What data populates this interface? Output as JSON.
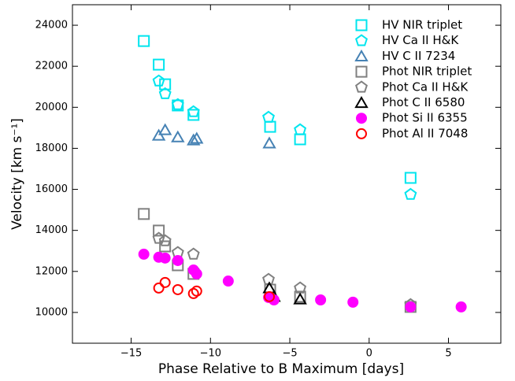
{
  "chart_data": {
    "type": "scatter",
    "x_label": "Phase Relative to B Maximum [days]",
    "y_label": "Velocity [km s⁻¹]",
    "xlim": [
      -18.7,
      8.3
    ],
    "ylim": [
      8500,
      25000
    ],
    "xticks": [
      {
        "value": -15,
        "label": "−15"
      },
      {
        "value": -10,
        "label": "−10"
      },
      {
        "value": -5,
        "label": "−5"
      },
      0,
      5
    ],
    "yticks": [
      10000,
      12000,
      14000,
      16000,
      18000,
      20000,
      22000,
      24000
    ],
    "legend": "upper right",
    "series": [
      {
        "name": "HV NIR triplet",
        "color": "#00e5ee",
        "marker": "square",
        "filled": false,
        "x": [
          -14.2,
          -13.26,
          -12.86,
          -12.06,
          -11.07,
          -6.24,
          -4.35,
          2.61
        ],
        "values": [
          23230,
          22080,
          21120,
          20090,
          19630,
          19050,
          18440,
          16560
        ]
      },
      {
        "name": "HV Ca II H&K",
        "color": "#00e5ee",
        "marker": "pentagon",
        "filled": false,
        "x": [
          -13.26,
          -12.86,
          -12.06,
          -11.07,
          -6.34,
          -4.35,
          2.61
        ],
        "values": [
          21280,
          20660,
          20130,
          19780,
          19510,
          18900,
          15750
        ]
      },
      {
        "name": "HV C II 7234",
        "color": "#4682b4",
        "marker": "triangle",
        "filled": false,
        "x": [
          -13.26,
          -12.86,
          -12.06,
          -11.07,
          -10.87,
          -6.29
        ],
        "values": [
          18630,
          18900,
          18550,
          18400,
          18480,
          18250
        ]
      },
      {
        "name": "Phot NIR triplet",
        "color": "#808080",
        "marker": "square",
        "filled": false,
        "x": [
          -14.2,
          -13.26,
          -12.86,
          -12.06,
          -11.07,
          -6.24,
          -4.35,
          2.61
        ],
        "values": [
          14800,
          13990,
          13220,
          12300,
          11880,
          11110,
          10770,
          10270
        ]
      },
      {
        "name": "Phot Ca II H&K",
        "color": "#808080",
        "marker": "pentagon",
        "filled": false,
        "x": [
          -13.26,
          -12.86,
          -12.06,
          -11.07,
          -6.34,
          -4.35,
          2.61
        ],
        "values": [
          13610,
          13490,
          12920,
          12840,
          11610,
          11190,
          10380
        ]
      },
      {
        "name": "Phot C II 6580",
        "color": "#000000",
        "marker": "triangle",
        "filled": false,
        "x": [
          -6.29,
          -6.0,
          -4.35
        ],
        "values": [
          11190,
          10770,
          10650
        ]
      },
      {
        "name": "Phot Si II 6355",
        "color": "#ff00ff",
        "marker": "circle",
        "filled": true,
        "x": [
          -14.2,
          -13.26,
          -12.86,
          -12.06,
          -11.07,
          -10.87,
          -8.88,
          -6.34,
          -6.0,
          -3.06,
          -1.02,
          2.61,
          5.8
        ],
        "values": [
          12840,
          12690,
          12650,
          12530,
          12070,
          11880,
          11530,
          10730,
          10610,
          10610,
          10500,
          10270,
          10270
        ]
      },
      {
        "name": "Phot Al II 7048",
        "color": "#ff0000",
        "marker": "circle",
        "filled": false,
        "x": [
          -13.26,
          -12.86,
          -12.06,
          -11.07,
          -10.87,
          -6.29
        ],
        "values": [
          11190,
          11460,
          11110,
          10920,
          11040,
          10770
        ]
      }
    ]
  }
}
